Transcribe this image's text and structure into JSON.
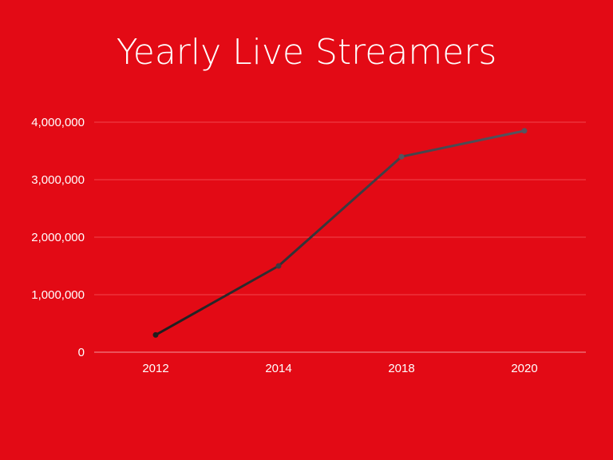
{
  "chart_data": {
    "type": "line",
    "title": "Yearly Live Streamers",
    "xlabel": "",
    "ylabel": "",
    "categories": [
      "2012",
      "2014",
      "2018",
      "2020"
    ],
    "values": [
      300000,
      1500000,
      3400000,
      3850000
    ],
    "ylim": [
      0,
      4000000
    ],
    "yticks": [
      0,
      1000000,
      2000000,
      3000000,
      4000000
    ],
    "ytick_labels": [
      "0",
      "1,000,000",
      "2,000,000",
      "3,000,000",
      "4,000,000"
    ],
    "grid": true,
    "legend": "none",
    "colors": {
      "background": "#e30a15",
      "line_start": "#1e1e1e",
      "line_end": "#55555f",
      "grid": "#f0454d",
      "text": "#ffffff"
    }
  }
}
